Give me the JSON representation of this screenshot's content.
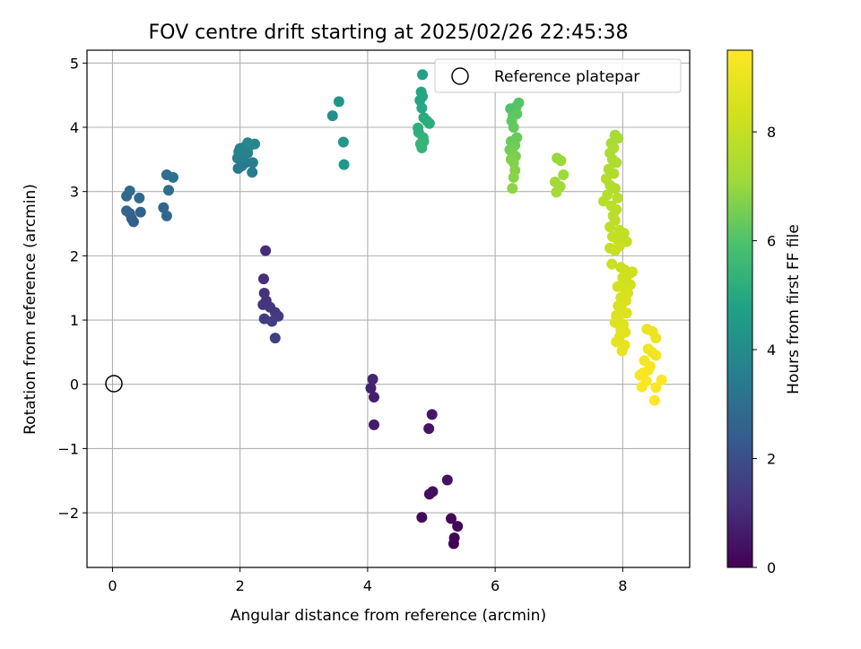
{
  "chart_data": {
    "type": "scatter",
    "title": "FOV centre drift starting at 2025/02/26 22:45:38",
    "xlabel": "Angular distance from reference (arcmin)",
    "ylabel": "Rotation from reference (arcmin)",
    "xlim": [
      -0.4,
      9.05
    ],
    "ylim": [
      -2.85,
      5.2
    ],
    "xticks": [
      0,
      2,
      4,
      6,
      8
    ],
    "xtick_labels": [
      "0",
      "2",
      "4",
      "6",
      "8"
    ],
    "yticks": [
      -2,
      -1,
      0,
      1,
      2,
      3,
      4,
      5
    ],
    "ytick_labels": [
      "−2",
      "−1",
      "0",
      "1",
      "2",
      "3",
      "4",
      "5"
    ],
    "grid": true,
    "legend": {
      "placement": "top-right",
      "entries": [
        "Reference platepar"
      ]
    },
    "reference_marker": {
      "x": 0,
      "y": 0,
      "label": "Reference platepar"
    },
    "colorbar": {
      "label": "Hours from first FF file",
      "range": [
        0,
        9.5
      ],
      "ticks": [
        0,
        2,
        4,
        6,
        8
      ],
      "tick_labels": [
        "0",
        "2",
        "4",
        "6",
        "8"
      ],
      "colormap": "viridis"
    },
    "series": [
      {
        "color_by": "hours",
        "points": [
          [
            5.35,
            -2.48,
            0.0
          ],
          [
            5.36,
            -2.39,
            0.05
          ],
          [
            5.41,
            -2.21,
            0.1
          ],
          [
            5.31,
            -2.09,
            0.15
          ],
          [
            4.85,
            -2.07,
            0.22
          ],
          [
            4.97,
            -1.71,
            0.3
          ],
          [
            5.02,
            -1.67,
            0.35
          ],
          [
            5.25,
            -1.49,
            0.4
          ],
          [
            4.96,
            -0.69,
            0.48
          ],
          [
            5.01,
            -0.47,
            0.55
          ],
          [
            4.1,
            -0.63,
            0.65
          ],
          [
            4.1,
            -0.2,
            0.72
          ],
          [
            4.05,
            -0.06,
            0.78
          ],
          [
            4.08,
            0.08,
            0.85
          ],
          [
            2.4,
            2.08,
            1.05
          ],
          [
            2.37,
            1.64,
            1.12
          ],
          [
            2.38,
            1.42,
            1.18
          ],
          [
            2.41,
            1.3,
            1.22
          ],
          [
            2.36,
            1.24,
            1.28
          ],
          [
            2.47,
            1.2,
            1.32
          ],
          [
            2.55,
            1.12,
            1.38
          ],
          [
            2.6,
            1.06,
            1.42
          ],
          [
            2.38,
            1.02,
            1.48
          ],
          [
            2.5,
            0.98,
            1.52
          ],
          [
            2.55,
            0.72,
            1.58
          ],
          [
            0.33,
            2.53,
            2.45
          ],
          [
            0.3,
            2.58,
            2.5
          ],
          [
            0.27,
            2.66,
            2.55
          ],
          [
            0.44,
            2.68,
            2.6
          ],
          [
            0.22,
            2.7,
            2.65
          ],
          [
            0.8,
            2.75,
            2.7
          ],
          [
            0.85,
            2.62,
            2.75
          ],
          [
            0.42,
            2.9,
            2.8
          ],
          [
            0.22,
            2.93,
            2.85
          ],
          [
            0.27,
            3.01,
            2.9
          ],
          [
            0.88,
            3.02,
            2.95
          ],
          [
            0.85,
            3.26,
            3.0
          ],
          [
            0.95,
            3.22,
            3.05
          ],
          [
            1.97,
            3.36,
            3.3
          ],
          [
            2.03,
            3.4,
            3.35
          ],
          [
            2.09,
            3.45,
            3.4
          ],
          [
            2.19,
            3.3,
            3.45
          ],
          [
            2.2,
            3.45,
            3.5
          ],
          [
            1.96,
            3.52,
            3.55
          ],
          [
            2.05,
            3.55,
            3.6
          ],
          [
            2.12,
            3.6,
            3.62
          ],
          [
            1.98,
            3.62,
            3.66
          ],
          [
            2.0,
            3.67,
            3.7
          ],
          [
            2.08,
            3.7,
            3.74
          ],
          [
            2.16,
            3.72,
            3.78
          ],
          [
            2.23,
            3.74,
            3.82
          ],
          [
            2.12,
            3.76,
            3.86
          ],
          [
            3.45,
            4.18,
            4.2
          ],
          [
            3.55,
            4.4,
            4.28
          ],
          [
            3.62,
            3.77,
            4.36
          ],
          [
            3.63,
            3.42,
            4.44
          ],
          [
            4.86,
            4.82,
            4.8
          ],
          [
            4.84,
            4.55,
            4.85
          ],
          [
            4.86,
            4.48,
            4.9
          ],
          [
            4.82,
            4.42,
            4.95
          ],
          [
            4.85,
            4.3,
            5.0
          ],
          [
            4.88,
            4.15,
            5.05
          ],
          [
            4.93,
            4.1,
            5.1
          ],
          [
            4.97,
            4.06,
            5.15
          ],
          [
            4.79,
            3.99,
            5.2
          ],
          [
            4.8,
            3.92,
            5.25
          ],
          [
            4.87,
            3.84,
            5.3
          ],
          [
            4.88,
            3.78,
            5.35
          ],
          [
            4.85,
            3.68,
            5.4
          ],
          [
            4.83,
            3.74,
            5.45
          ],
          [
            6.24,
            4.29,
            6.0
          ],
          [
            6.33,
            4.32,
            6.05
          ],
          [
            6.37,
            4.38,
            6.1
          ],
          [
            6.28,
            4.18,
            6.15
          ],
          [
            6.34,
            4.21,
            6.2
          ],
          [
            6.26,
            4.1,
            6.25
          ],
          [
            6.29,
            4.0,
            6.3
          ],
          [
            6.34,
            3.84,
            6.35
          ],
          [
            6.25,
            3.78,
            6.4
          ],
          [
            6.31,
            3.72,
            6.45
          ],
          [
            6.23,
            3.65,
            6.5
          ],
          [
            6.27,
            3.6,
            6.55
          ],
          [
            6.32,
            3.55,
            6.6
          ],
          [
            6.25,
            3.5,
            6.65
          ],
          [
            6.29,
            3.45,
            6.7
          ],
          [
            6.31,
            3.33,
            6.75
          ],
          [
            6.29,
            3.22,
            6.8
          ],
          [
            6.27,
            3.05,
            6.85
          ],
          [
            6.97,
            3.52,
            7.0
          ],
          [
            7.03,
            3.48,
            7.05
          ],
          [
            7.07,
            3.26,
            7.1
          ],
          [
            6.94,
            3.15,
            7.15
          ],
          [
            7.02,
            3.08,
            7.2
          ],
          [
            6.96,
            2.99,
            7.25
          ],
          [
            7.88,
            3.88,
            7.3
          ],
          [
            7.93,
            3.83,
            7.33
          ],
          [
            7.82,
            3.75,
            7.36
          ],
          [
            7.86,
            3.68,
            7.39
          ],
          [
            7.8,
            3.6,
            7.42
          ],
          [
            7.84,
            3.5,
            7.45
          ],
          [
            7.9,
            3.45,
            7.48
          ],
          [
            7.78,
            3.35,
            7.51
          ],
          [
            7.86,
            3.28,
            7.54
          ],
          [
            7.74,
            3.2,
            7.57
          ],
          [
            7.8,
            3.1,
            7.6
          ],
          [
            7.88,
            3.05,
            7.63
          ],
          [
            7.76,
            2.95,
            7.66
          ],
          [
            7.7,
            2.85,
            7.69
          ],
          [
            7.92,
            2.9,
            7.72
          ],
          [
            7.82,
            2.78,
            7.75
          ],
          [
            7.9,
            2.72,
            7.78
          ],
          [
            7.85,
            2.62,
            7.81
          ],
          [
            7.88,
            2.55,
            7.84
          ],
          [
            7.8,
            2.45,
            7.87
          ],
          [
            7.95,
            2.4,
            7.9
          ],
          [
            8.02,
            2.35,
            7.93
          ],
          [
            7.84,
            2.3,
            7.96
          ],
          [
            7.92,
            2.25,
            7.99
          ],
          [
            8.06,
            2.22,
            8.02
          ],
          [
            7.8,
            2.12,
            8.05
          ],
          [
            7.88,
            2.08,
            8.08
          ],
          [
            7.95,
            2.15,
            8.11
          ],
          [
            7.83,
            1.87,
            8.14
          ],
          [
            7.97,
            1.82,
            8.17
          ],
          [
            8.03,
            1.78,
            8.2
          ],
          [
            8.1,
            1.72,
            8.23
          ],
          [
            8.15,
            1.75,
            8.26
          ],
          [
            8.0,
            1.66,
            8.29
          ],
          [
            8.06,
            1.6,
            8.32
          ],
          [
            8.12,
            1.55,
            8.35
          ],
          [
            7.92,
            1.52,
            8.38
          ],
          [
            8.02,
            1.5,
            8.41
          ],
          [
            8.08,
            1.42,
            8.44
          ],
          [
            7.97,
            1.35,
            8.47
          ],
          [
            8.05,
            1.3,
            8.5
          ],
          [
            7.93,
            1.22,
            8.53
          ],
          [
            7.98,
            1.17,
            8.56
          ],
          [
            8.06,
            1.11,
            8.59
          ],
          [
            7.9,
            1.07,
            8.62
          ],
          [
            7.94,
            0.99,
            8.65
          ],
          [
            8.01,
            0.93,
            8.68
          ],
          [
            7.88,
            0.96,
            8.71
          ],
          [
            7.97,
            0.85,
            8.74
          ],
          [
            8.04,
            0.81,
            8.77
          ],
          [
            7.95,
            0.74,
            8.8
          ],
          [
            7.9,
            0.66,
            8.83
          ],
          [
            8.03,
            0.61,
            8.86
          ],
          [
            7.99,
            0.52,
            8.89
          ],
          [
            8.38,
            0.86,
            9.0
          ],
          [
            8.47,
            0.82,
            9.04
          ],
          [
            8.52,
            0.72,
            9.08
          ],
          [
            8.4,
            0.55,
            9.12
          ],
          [
            8.46,
            0.5,
            9.16
          ],
          [
            8.52,
            0.45,
            9.2
          ],
          [
            8.34,
            0.37,
            9.24
          ],
          [
            8.43,
            0.28,
            9.28
          ],
          [
            8.32,
            0.18,
            9.32
          ],
          [
            8.4,
            0.22,
            9.36
          ],
          [
            8.27,
            0.14,
            9.4
          ],
          [
            8.37,
            0.05,
            9.44
          ],
          [
            8.61,
            0.07,
            9.46
          ],
          [
            8.52,
            -0.05,
            9.48
          ],
          [
            8.3,
            -0.04,
            9.49
          ],
          [
            8.5,
            -0.25,
            9.5
          ]
        ]
      }
    ]
  }
}
